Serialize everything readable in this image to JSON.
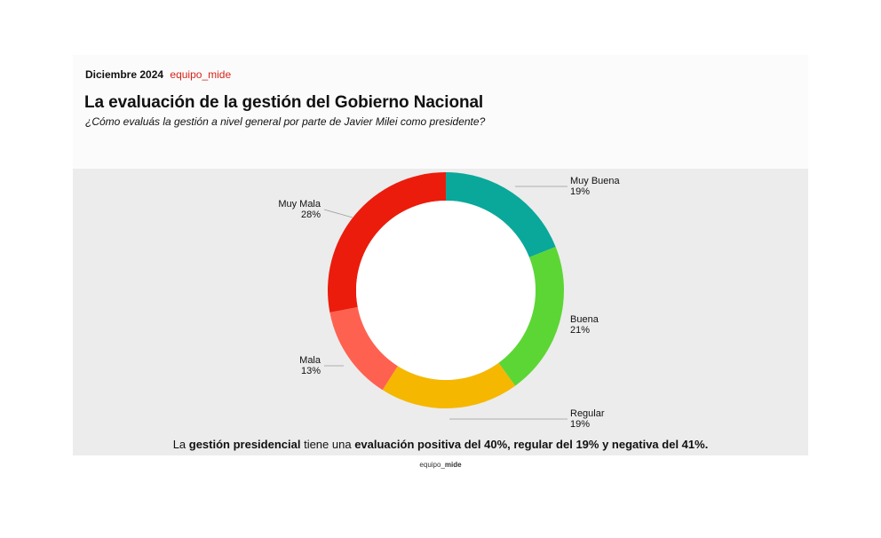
{
  "header": {
    "date": "Diciembre 2024",
    "brand": "equipo_mide"
  },
  "title": "La evaluación de la gestión del Gobierno Nacional",
  "subtitle": "¿Cómo evaluás la gestión a nivel general por parte de Javier Milei como presidente?",
  "footnote": {
    "p1": "La ",
    "b1": "gestión presidencial",
    "p2": " tiene una ",
    "b2": "evaluación positiva del 40%, regular del 19% y negativa del 41%."
  },
  "footer_brand": {
    "prefix": "equipo_",
    "bold": "mide"
  },
  "chart_data": {
    "type": "pie",
    "donut": true,
    "categories": [
      "Muy Buena",
      "Buena",
      "Regular",
      "Mala",
      "Muy Mala"
    ],
    "values": [
      19,
      21,
      19,
      13,
      28
    ],
    "labels": [
      "19%",
      "21%",
      "19%",
      "13%",
      "28%"
    ],
    "colors": [
      "#0aa89a",
      "#5cd634",
      "#f5b700",
      "#ff6150",
      "#eb1c0c"
    ],
    "start": "12 o'clock",
    "direction": "clockwise",
    "title": "La evaluación de la gestión del Gobierno Nacional",
    "subtitle": "¿Cómo evaluás la gestión a nivel general por parte de Javier Milei como presidente?",
    "legend": "none (labels beside slices)"
  }
}
